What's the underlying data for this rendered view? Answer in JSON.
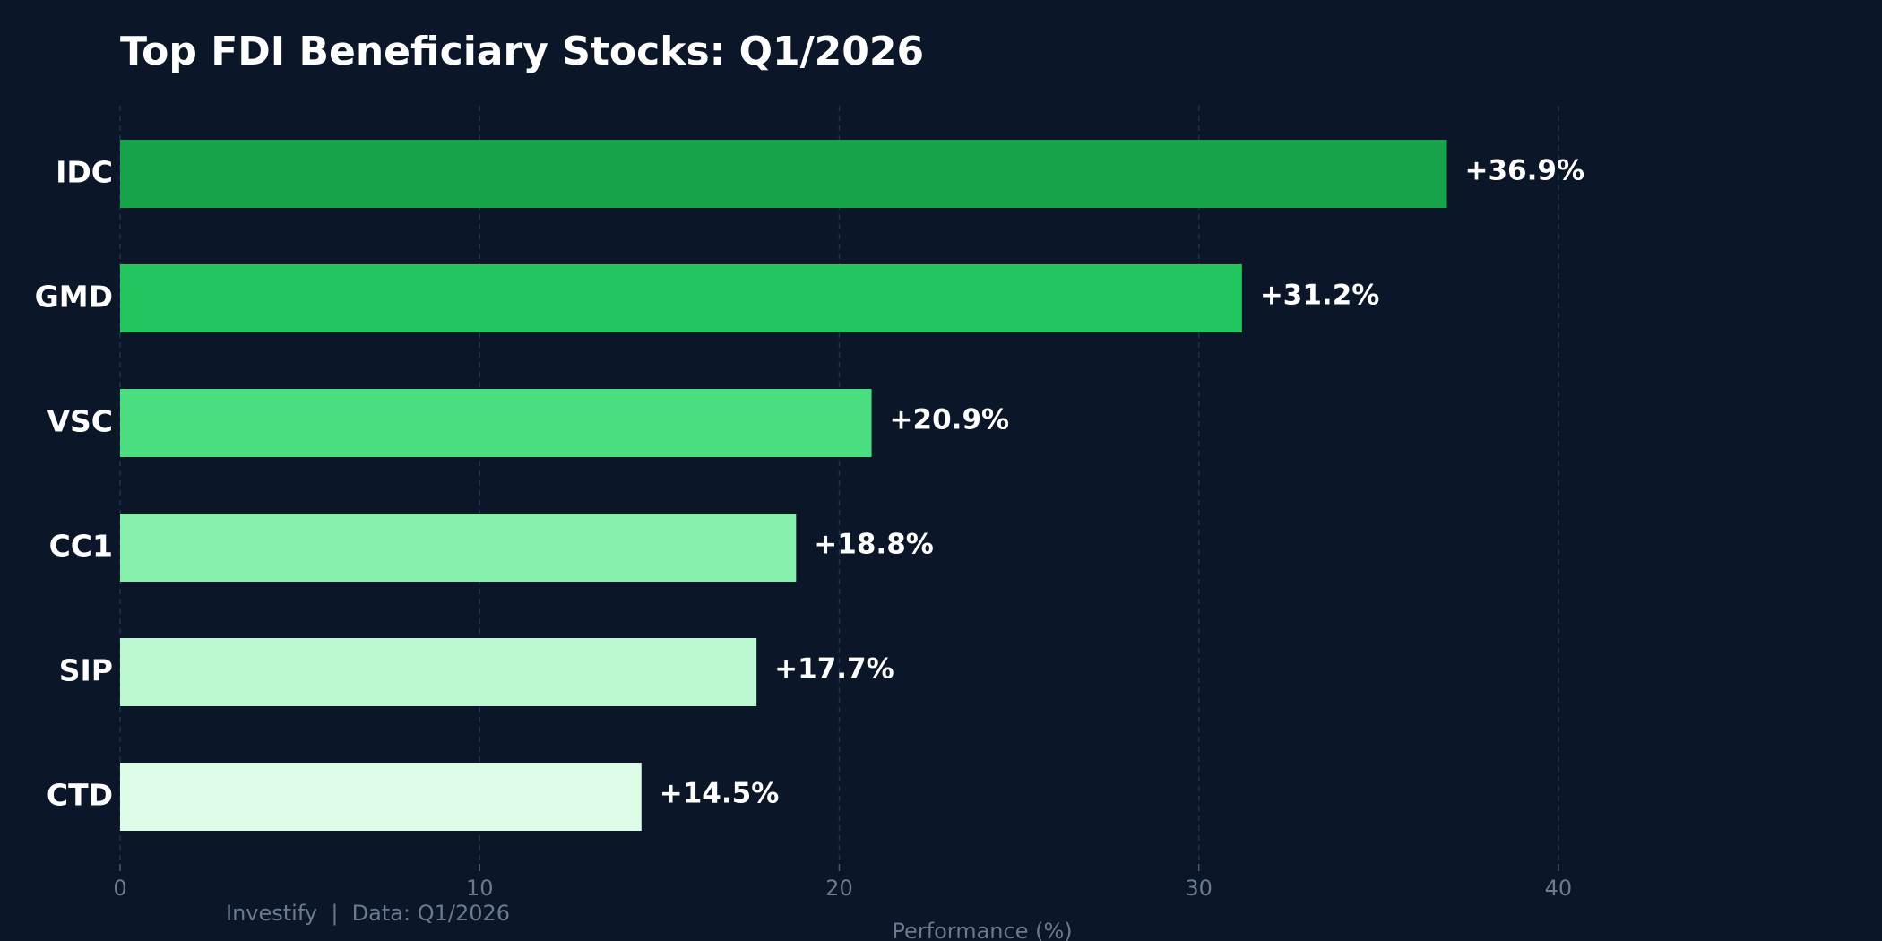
{
  "chart_data": {
    "type": "barh",
    "title": "Top FDI Beneficiary Stocks: Q1/2026",
    "categories": [
      "IDC",
      "GMD",
      "VSC",
      "CC1",
      "SIP",
      "CTD"
    ],
    "values": [
      36.9,
      31.2,
      20.9,
      18.8,
      17.7,
      14.5
    ],
    "value_labels": [
      "+36.9%",
      "+31.2%",
      "+20.9%",
      "+18.8%",
      "+17.7%",
      "+14.5%"
    ],
    "colors": [
      "#16a34a",
      "#22c55e",
      "#4ade80",
      "#86efac",
      "#bbf7d0",
      "#dcfce7"
    ],
    "xlim": [
      0,
      49
    ],
    "xticks": [
      0,
      10,
      20,
      30,
      40
    ],
    "grid": true,
    "xlabel": "Performance (%)",
    "footer": "Investify  |  Data: Q1/2026"
  }
}
